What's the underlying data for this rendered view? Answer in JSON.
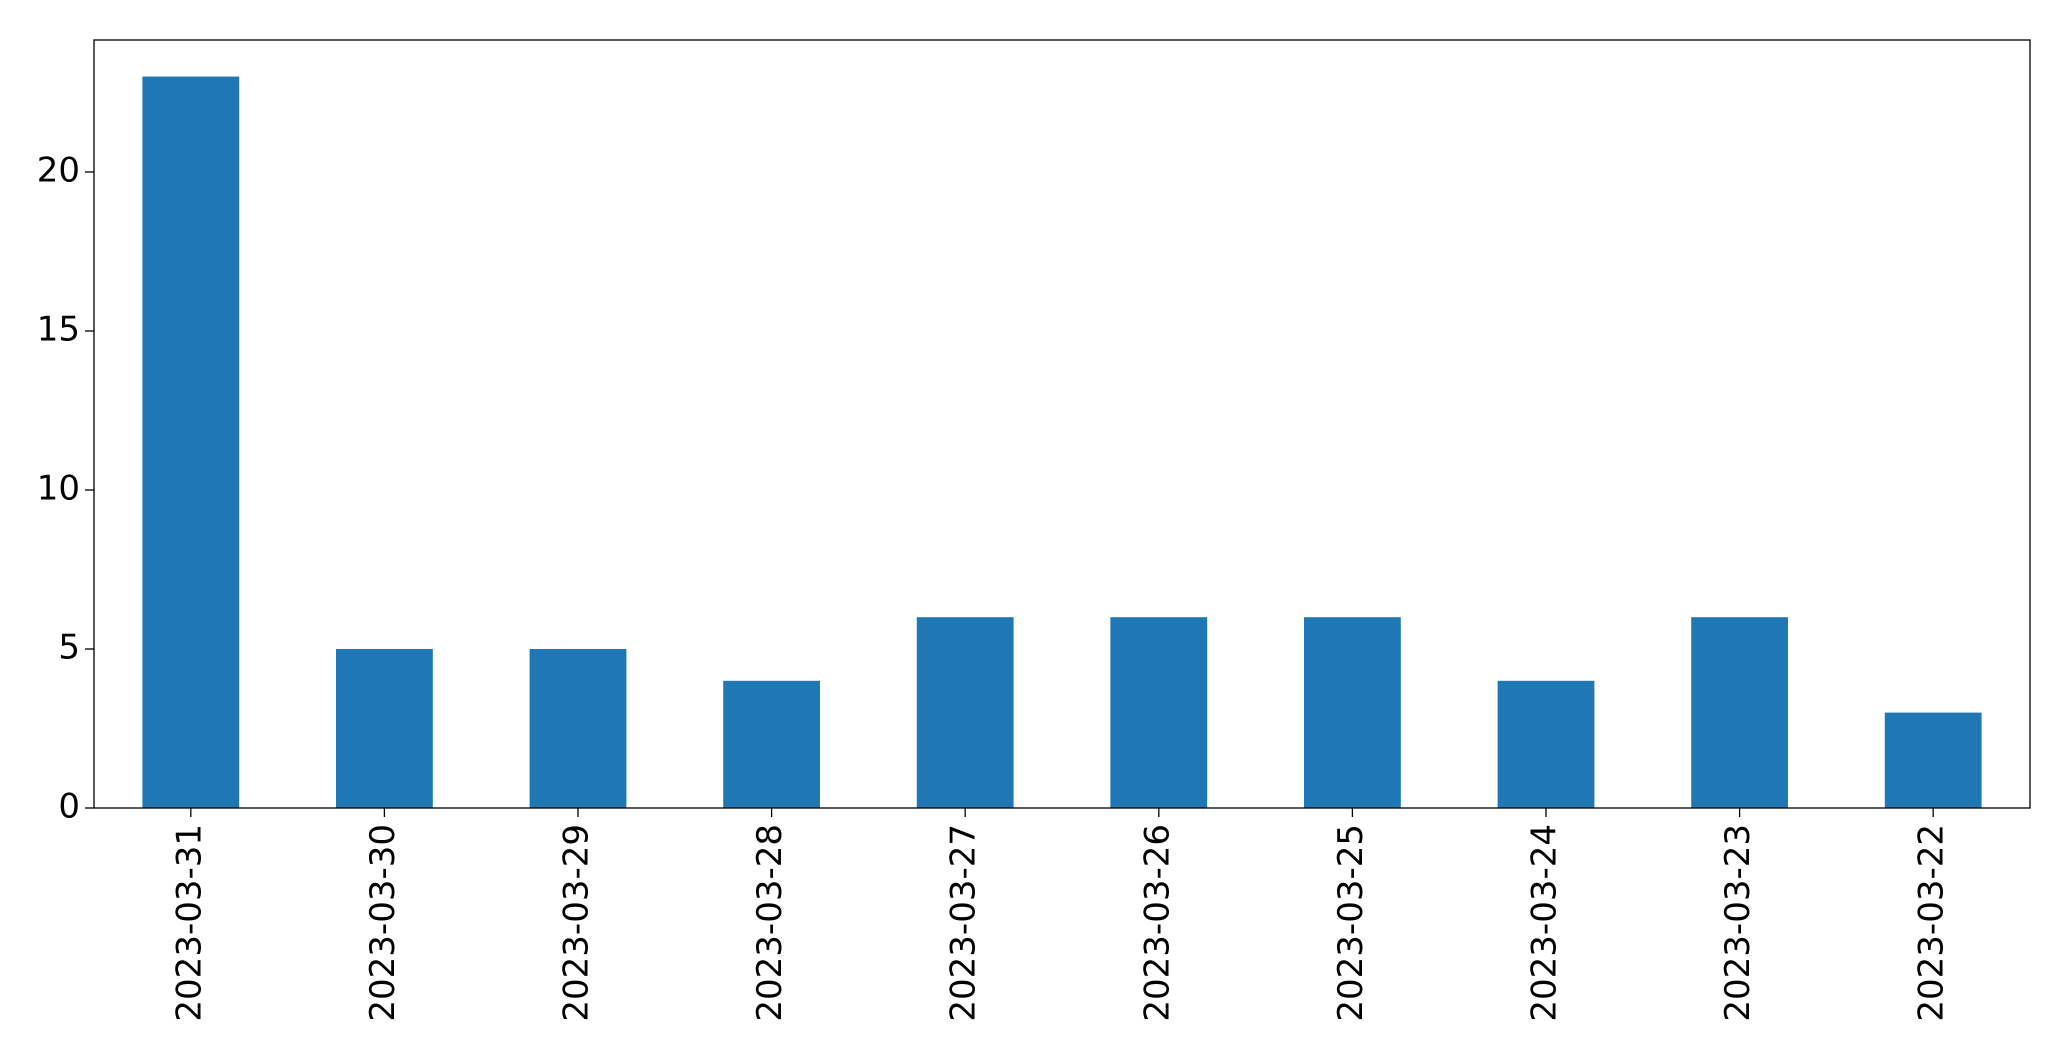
{
  "chart_data": {
    "type": "bar",
    "categories": [
      "2023-03-31",
      "2023-03-30",
      "2023-03-29",
      "2023-03-28",
      "2023-03-27",
      "2023-03-26",
      "2023-03-25",
      "2023-03-24",
      "2023-03-23",
      "2023-03-22"
    ],
    "values": [
      23,
      5,
      5,
      4,
      6,
      6,
      6,
      4,
      6,
      3
    ],
    "color": "#1f77b4",
    "ylim": [
      0,
      24.15
    ],
    "yticks": [
      0,
      5,
      10,
      15,
      20
    ],
    "grid": false
  }
}
